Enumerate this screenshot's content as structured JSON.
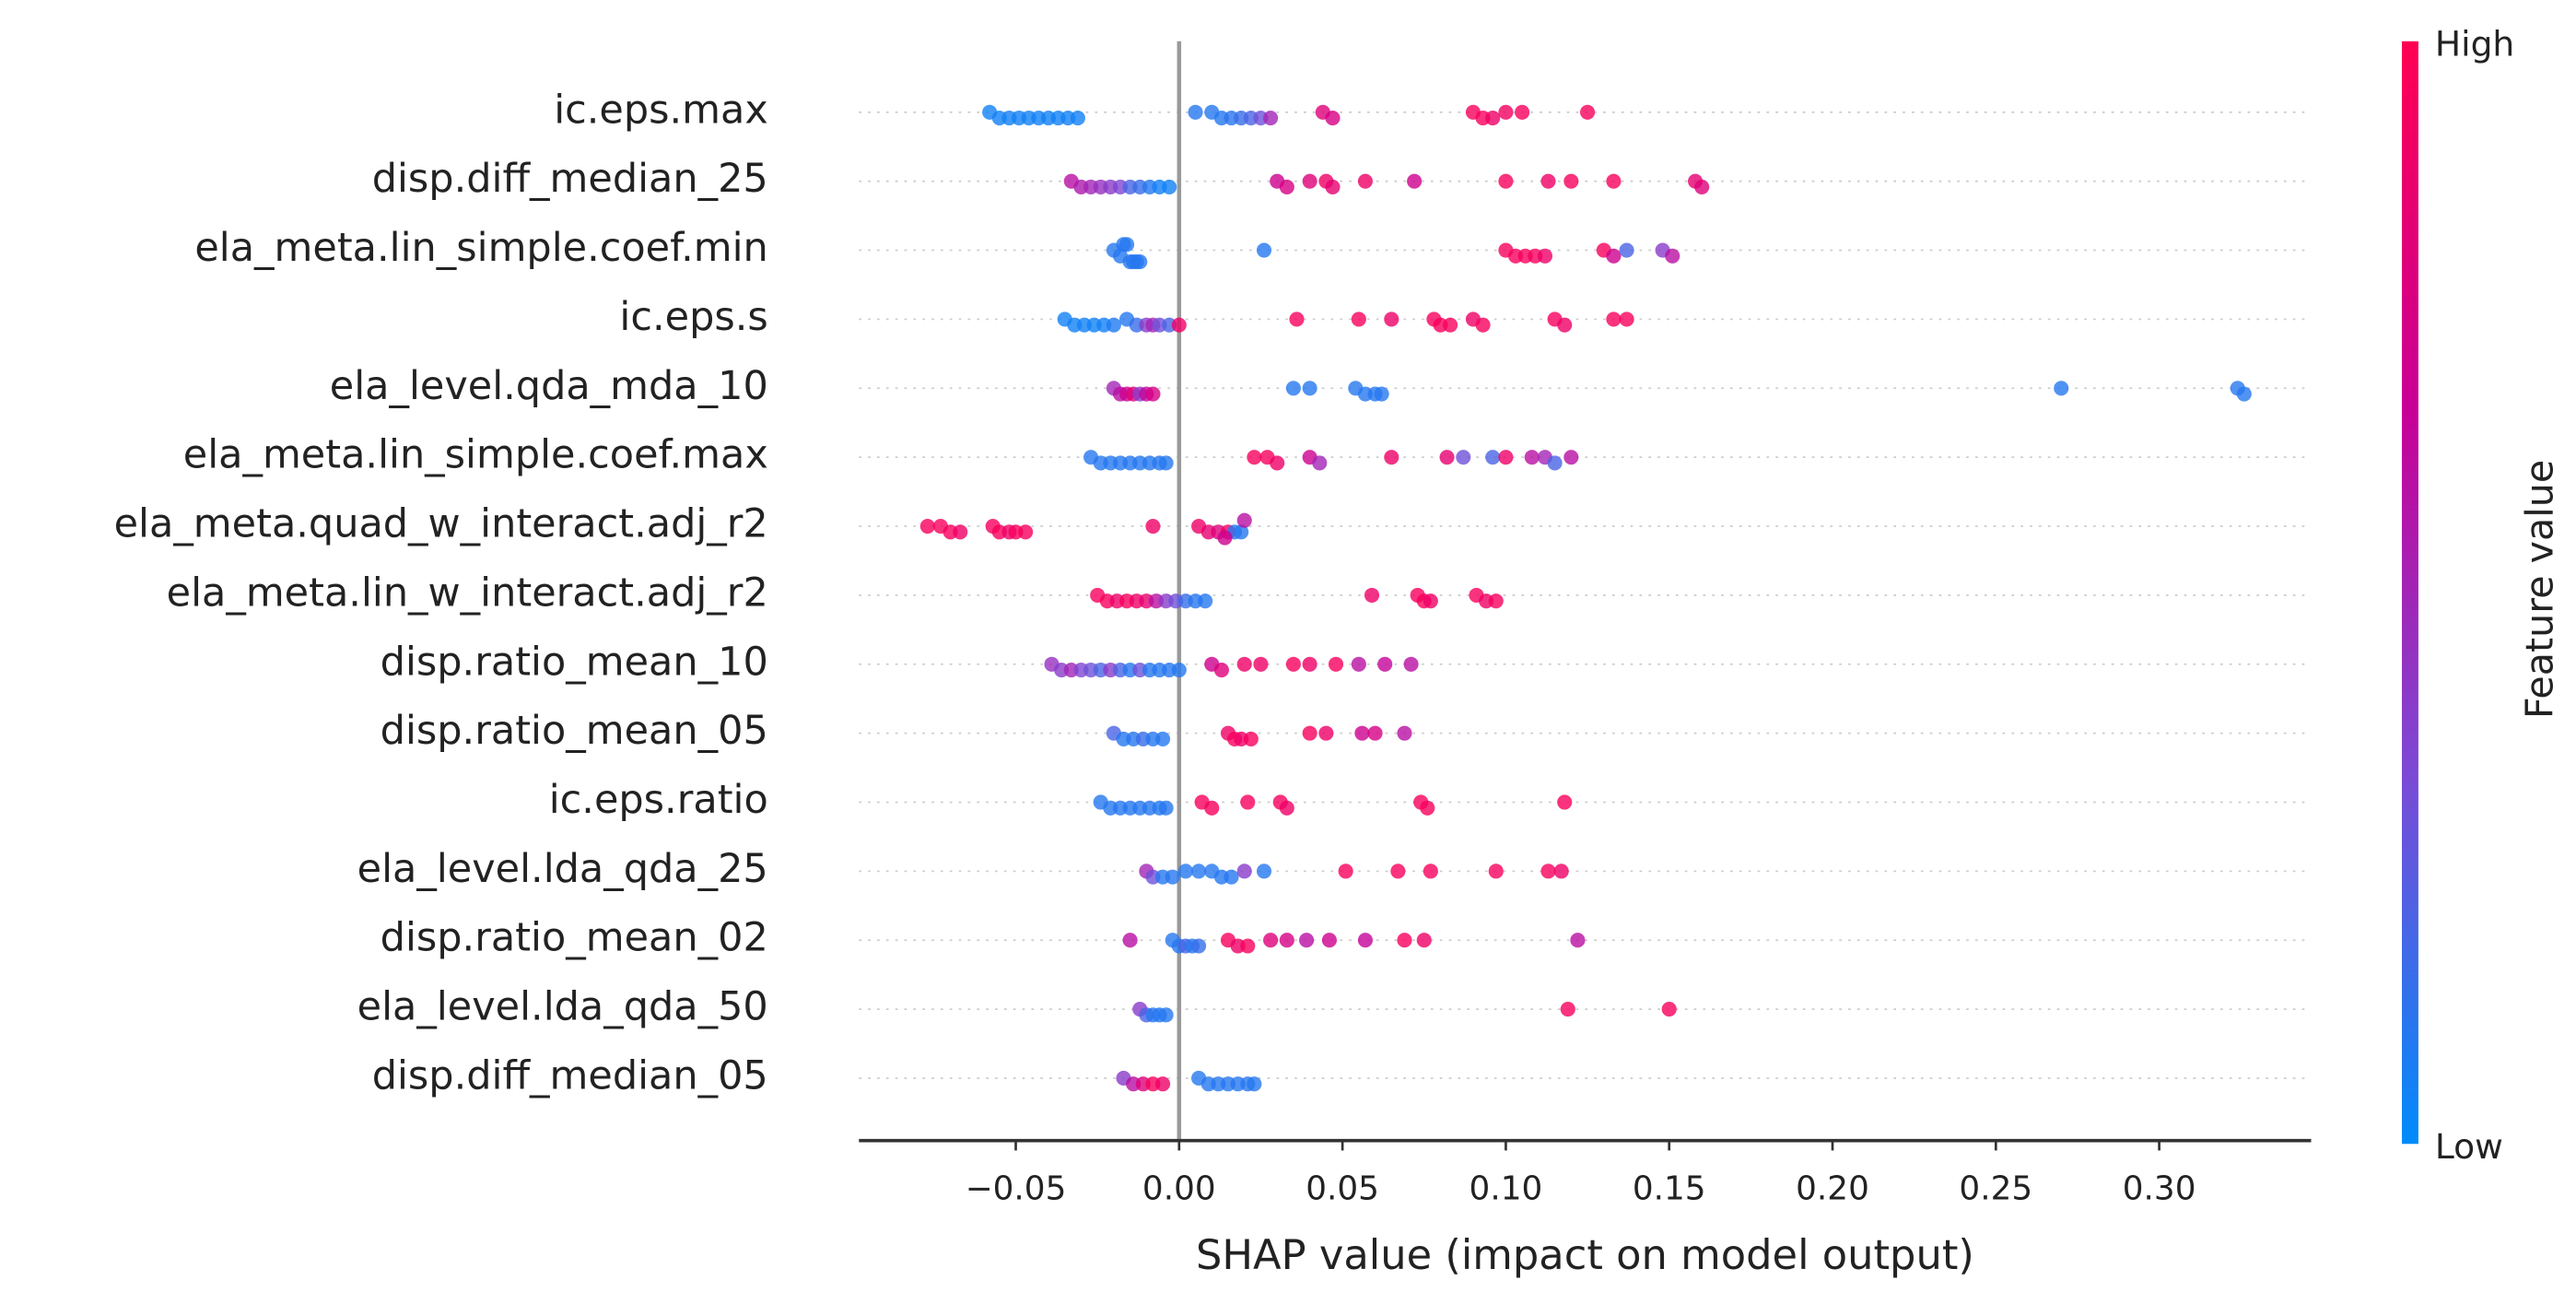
{
  "chart_data": {
    "type": "beeswarm",
    "xlabel": "SHAP value (impact on model output)",
    "xlim": [
      -0.098,
      0.3465
    ],
    "xticks": [
      {
        "value": -0.05,
        "label": "−0.05"
      },
      {
        "value": 0,
        "label": "0.00"
      },
      0.05,
      {
        "value": 0.1,
        "label": "0.10"
      },
      0.15,
      {
        "value": 0.2,
        "label": "0.20"
      },
      0.25,
      {
        "value": 0.3,
        "label": "0.30"
      }
    ],
    "grid": true,
    "colorbar": {
      "title": "Feature value",
      "high": "High",
      "low": "Low",
      "colors": [
        "#008bfb",
        "#7b4ad6",
        "#c80096",
        "#ff0052"
      ]
    },
    "series": [
      {
        "name": "ic.eps.max",
        "values": [
          -0.058,
          -0.055,
          -0.052,
          -0.049,
          -0.046,
          -0.043,
          -0.04,
          -0.037,
          -0.034,
          -0.031,
          0.005,
          0.01,
          0.013,
          0.016,
          0.019,
          0.022,
          0.025,
          0.028,
          0.044,
          0.047,
          0.09,
          0.093,
          0.096,
          0.1,
          0.105,
          0.125
        ],
        "feature_values": [
          0.05,
          0.05,
          0.05,
          0.05,
          0.05,
          0.05,
          0.05,
          0.05,
          0.05,
          0.05,
          0.1,
          0.1,
          0.1,
          0.12,
          0.15,
          0.2,
          0.3,
          0.5,
          0.8,
          0.75,
          0.95,
          0.95,
          0.9,
          0.92,
          0.95,
          0.95
        ]
      },
      {
        "name": "disp.diff_median_25",
        "values": [
          -0.033,
          -0.03,
          -0.027,
          -0.024,
          -0.021,
          -0.018,
          -0.015,
          -0.012,
          -0.009,
          -0.006,
          -0.003,
          0.03,
          0.033,
          0.04,
          0.045,
          0.047,
          0.057,
          0.072,
          0.1,
          0.113,
          0.12,
          0.133,
          0.158,
          0.16
        ],
        "feature_values": [
          0.6,
          0.55,
          0.5,
          0.45,
          0.4,
          0.35,
          0.2,
          0.15,
          0.1,
          0.05,
          0.05,
          0.7,
          0.75,
          0.8,
          0.9,
          0.85,
          0.9,
          0.7,
          0.95,
          0.9,
          0.95,
          0.95,
          0.85,
          0.8
        ]
      },
      {
        "name": "ela_meta.lin_simple.coef.min",
        "values": [
          -0.02,
          -0.018,
          -0.017,
          -0.016,
          -0.015,
          -0.014,
          -0.013,
          -0.012,
          0.026,
          0.1,
          0.103,
          0.106,
          0.109,
          0.112,
          0.13,
          0.133,
          0.137,
          0.148,
          0.151
        ],
        "feature_values": [
          0.1,
          0.1,
          0.1,
          0.1,
          0.1,
          0.1,
          0.1,
          0.1,
          0.1,
          0.95,
          0.95,
          0.95,
          0.95,
          0.9,
          0.95,
          0.7,
          0.2,
          0.4,
          0.6
        ]
      },
      {
        "name": "ic.eps.s",
        "values": [
          -0.035,
          -0.032,
          -0.029,
          -0.026,
          -0.023,
          -0.02,
          -0.016,
          -0.013,
          -0.01,
          -0.008,
          -0.006,
          -0.003,
          0.0,
          0.036,
          0.055,
          0.065,
          0.078,
          0.08,
          0.083,
          0.09,
          0.093,
          0.115,
          0.118,
          0.133,
          0.137
        ],
        "feature_values": [
          0.05,
          0.05,
          0.05,
          0.05,
          0.05,
          0.08,
          0.1,
          0.15,
          0.4,
          0.5,
          0.3,
          0.2,
          0.9,
          0.95,
          0.95,
          0.9,
          0.95,
          0.95,
          0.95,
          0.9,
          0.95,
          0.95,
          0.9,
          0.95,
          0.95
        ]
      },
      {
        "name": "ela_level.qda_mda_10",
        "values": [
          -0.02,
          -0.018,
          -0.016,
          -0.014,
          -0.012,
          -0.01,
          -0.008,
          0.035,
          0.04,
          0.054,
          0.057,
          0.06,
          0.062,
          0.27,
          0.324,
          0.326
        ],
        "feature_values": [
          0.5,
          0.6,
          0.7,
          0.8,
          0.4,
          0.65,
          0.75,
          0.1,
          0.1,
          0.1,
          0.1,
          0.1,
          0.1,
          0.1,
          0.1,
          0.1
        ]
      },
      {
        "name": "ela_meta.lin_simple.coef.max",
        "values": [
          -0.027,
          -0.024,
          -0.021,
          -0.018,
          -0.015,
          -0.012,
          -0.009,
          -0.006,
          -0.004,
          0.023,
          0.027,
          0.03,
          0.04,
          0.043,
          0.065,
          0.082,
          0.087,
          0.096,
          0.1,
          0.108,
          0.112,
          0.115,
          0.12
        ],
        "feature_values": [
          0.1,
          0.1,
          0.1,
          0.1,
          0.1,
          0.1,
          0.1,
          0.1,
          0.1,
          0.95,
          0.95,
          0.9,
          0.7,
          0.5,
          0.9,
          0.85,
          0.3,
          0.2,
          0.9,
          0.6,
          0.5,
          0.2,
          0.6
        ]
      },
      {
        "name": "ela_meta.quad_w_interact.adj_r2",
        "values": [
          -0.077,
          -0.073,
          -0.07,
          -0.067,
          -0.057,
          -0.055,
          -0.052,
          -0.05,
          -0.047,
          -0.008,
          0.006,
          0.009,
          0.012,
          0.015,
          0.017,
          0.019,
          0.014,
          0.02
        ],
        "feature_values": [
          0.95,
          0.95,
          0.95,
          0.9,
          0.95,
          0.95,
          0.9,
          0.95,
          0.95,
          0.9,
          0.9,
          0.85,
          0.8,
          0.9,
          0.1,
          0.1,
          0.7,
          0.6
        ]
      },
      {
        "name": "ela_meta.lin_w_interact.adj_r2",
        "values": [
          -0.025,
          -0.022,
          -0.019,
          -0.016,
          -0.013,
          -0.01,
          -0.007,
          -0.004,
          -0.001,
          0.002,
          0.005,
          0.008,
          0.059,
          0.073,
          0.075,
          0.077,
          0.091,
          0.094,
          0.097
        ],
        "feature_values": [
          0.95,
          0.95,
          0.9,
          0.95,
          0.9,
          0.85,
          0.6,
          0.4,
          0.3,
          0.15,
          0.1,
          0.1,
          0.9,
          0.95,
          0.95,
          0.9,
          0.95,
          0.9,
          0.95
        ]
      },
      {
        "name": "disp.ratio_mean_10",
        "values": [
          -0.039,
          -0.036,
          -0.033,
          -0.03,
          -0.027,
          -0.024,
          -0.021,
          -0.018,
          -0.015,
          -0.012,
          -0.009,
          -0.006,
          -0.003,
          0.0,
          0.01,
          0.013,
          0.02,
          0.025,
          0.035,
          0.04,
          0.048,
          0.055,
          0.063,
          0.071
        ],
        "feature_values": [
          0.45,
          0.4,
          0.5,
          0.35,
          0.3,
          0.2,
          0.4,
          0.2,
          0.1,
          0.3,
          0.1,
          0.1,
          0.1,
          0.1,
          0.7,
          0.8,
          0.9,
          0.9,
          0.95,
          0.9,
          0.95,
          0.6,
          0.65,
          0.6
        ]
      },
      {
        "name": "disp.ratio_mean_05",
        "values": [
          -0.02,
          -0.017,
          -0.014,
          -0.011,
          -0.008,
          -0.005,
          0.015,
          0.017,
          0.019,
          0.022,
          0.04,
          0.045,
          0.056,
          0.06,
          0.069
        ],
        "feature_values": [
          0.2,
          0.1,
          0.1,
          0.15,
          0.1,
          0.1,
          0.9,
          0.95,
          0.9,
          0.95,
          0.95,
          0.9,
          0.7,
          0.75,
          0.6
        ]
      },
      {
        "name": "ic.eps.ratio",
        "values": [
          -0.024,
          -0.021,
          -0.018,
          -0.015,
          -0.012,
          -0.009,
          -0.006,
          -0.004,
          0.007,
          0.01,
          0.021,
          0.031,
          0.033,
          0.074,
          0.076,
          0.118
        ],
        "feature_values": [
          0.1,
          0.1,
          0.1,
          0.1,
          0.1,
          0.1,
          0.1,
          0.1,
          0.95,
          0.95,
          0.95,
          0.95,
          0.9,
          0.95,
          0.95,
          0.95
        ]
      },
      {
        "name": "ela_level.lda_qda_25",
        "values": [
          -0.01,
          -0.008,
          -0.005,
          -0.002,
          0.002,
          0.006,
          0.01,
          0.013,
          0.016,
          0.02,
          0.026,
          0.051,
          0.067,
          0.077,
          0.097,
          0.113,
          0.117
        ],
        "feature_values": [
          0.5,
          0.3,
          0.1,
          0.1,
          0.1,
          0.1,
          0.1,
          0.1,
          0.1,
          0.4,
          0.1,
          0.95,
          0.95,
          0.95,
          0.95,
          0.95,
          0.9
        ]
      },
      {
        "name": "disp.ratio_mean_02",
        "values": [
          -0.015,
          -0.002,
          0.0,
          0.002,
          0.004,
          0.006,
          0.015,
          0.018,
          0.021,
          0.028,
          0.033,
          0.039,
          0.046,
          0.057,
          0.069,
          0.075,
          0.122
        ],
        "feature_values": [
          0.6,
          0.1,
          0.1,
          0.2,
          0.1,
          0.15,
          0.95,
          0.9,
          0.95,
          0.8,
          0.75,
          0.6,
          0.7,
          0.65,
          0.95,
          0.9,
          0.6
        ]
      },
      {
        "name": "ela_level.lda_qda_50",
        "values": [
          -0.012,
          -0.01,
          -0.008,
          -0.006,
          -0.004,
          0.119,
          0.15
        ],
        "feature_values": [
          0.4,
          0.2,
          0.1,
          0.1,
          0.1,
          0.95,
          0.95
        ]
      },
      {
        "name": "disp.diff_median_05",
        "values": [
          -0.017,
          -0.014,
          -0.011,
          -0.008,
          -0.005,
          0.006,
          0.009,
          0.012,
          0.015,
          0.018,
          0.021,
          0.023
        ],
        "feature_values": [
          0.4,
          0.6,
          0.8,
          0.95,
          0.9,
          0.1,
          0.1,
          0.1,
          0.1,
          0.1,
          0.1,
          0.1
        ]
      }
    ]
  }
}
